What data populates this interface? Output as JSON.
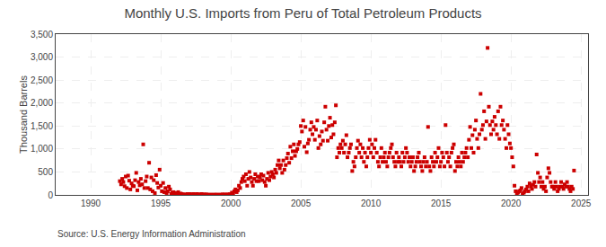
{
  "chart_data": {
    "type": "scatter",
    "title": "Monthly U.S. Imports from Peru of Total Petroleum Products",
    "ylabel": "Thousand Barrels",
    "annotation": "Source: U.S. Energy Information Administration",
    "color": "#cc0000",
    "marker": "square",
    "grid": true,
    "xlim": [
      1987.5,
      2025.5
    ],
    "xticks": [
      1990,
      1995,
      2000,
      2005,
      2010,
      2015,
      2020,
      2025
    ],
    "ylim": [
      0,
      3500
    ],
    "yticks": [
      0,
      500,
      {
        "value": 1000,
        "label": "1,000"
      },
      {
        "value": 1500,
        "label": "1,500"
      },
      {
        "value": 2000,
        "label": "2,000"
      },
      {
        "value": 2500,
        "label": "2,500"
      },
      {
        "value": 3000,
        "label": "3,000"
      },
      {
        "value": 3500,
        "label": "3,500"
      }
    ],
    "x": [
      1992.08,
      1992.17,
      1992.25,
      1992.33,
      1992.42,
      1992.5,
      1992.58,
      1992.67,
      1992.75,
      1992.83,
      1992.92,
      1993.0,
      1993.08,
      1993.17,
      1993.25,
      1993.33,
      1993.42,
      1993.5,
      1993.58,
      1993.67,
      1993.75,
      1993.83,
      1993.92,
      1994.0,
      1994.08,
      1994.17,
      1994.25,
      1994.33,
      1994.42,
      1994.5,
      1994.58,
      1994.67,
      1994.75,
      1994.83,
      1994.92,
      1995.0,
      1995.08,
      1995.17,
      1995.25,
      1995.33,
      1995.42,
      1995.5,
      1995.58,
      1995.67,
      1995.75,
      1995.83,
      1995.92,
      1996.0,
      1996.08,
      1996.17,
      1996.25,
      1996.33,
      1996.42,
      1996.5,
      1996.58,
      1996.67,
      1996.75,
      1996.83,
      1996.92,
      1997.0,
      1997.08,
      1997.17,
      1997.25,
      1997.33,
      1997.42,
      1997.5,
      1997.58,
      1997.67,
      1997.75,
      1997.83,
      1997.92,
      1998.0,
      1998.08,
      1998.17,
      1998.25,
      1998.33,
      1998.42,
      1998.5,
      1998.58,
      1998.67,
      1998.75,
      1998.83,
      1998.92,
      1999.0,
      1999.08,
      1999.17,
      1999.25,
      1999.33,
      1999.42,
      1999.5,
      1999.58,
      1999.67,
      1999.75,
      1999.83,
      1999.92,
      2000.0,
      2000.08,
      2000.17,
      2000.25,
      2000.33,
      2000.42,
      2000.5,
      2000.58,
      2000.67,
      2000.75,
      2000.83,
      2000.92,
      2001.0,
      2001.08,
      2001.17,
      2001.25,
      2001.33,
      2001.42,
      2001.5,
      2001.58,
      2001.67,
      2001.75,
      2001.83,
      2001.92,
      2002.0,
      2002.08,
      2002.17,
      2002.25,
      2002.33,
      2002.42,
      2002.5,
      2002.58,
      2002.67,
      2002.75,
      2002.83,
      2002.92,
      2003.0,
      2003.08,
      2003.17,
      2003.25,
      2003.33,
      2003.42,
      2003.5,
      2003.58,
      2003.67,
      2003.75,
      2003.83,
      2003.92,
      2004.0,
      2004.08,
      2004.17,
      2004.25,
      2004.33,
      2004.42,
      2004.5,
      2004.58,
      2004.67,
      2004.75,
      2004.83,
      2004.92,
      2005.0,
      2005.08,
      2005.17,
      2005.25,
      2005.33,
      2005.42,
      2005.5,
      2005.58,
      2005.67,
      2005.75,
      2005.83,
      2005.92,
      2006.0,
      2006.08,
      2006.17,
      2006.25,
      2006.33,
      2006.42,
      2006.5,
      2006.58,
      2006.67,
      2006.75,
      2006.83,
      2006.92,
      2007.0,
      2007.08,
      2007.17,
      2007.25,
      2007.33,
      2007.42,
      2007.5,
      2007.58,
      2007.67,
      2007.75,
      2007.83,
      2007.92,
      2008.0,
      2008.08,
      2008.17,
      2008.25,
      2008.33,
      2008.42,
      2008.5,
      2008.58,
      2008.67,
      2008.75,
      2008.83,
      2008.92,
      2009.0,
      2009.08,
      2009.17,
      2009.25,
      2009.33,
      2009.42,
      2009.5,
      2009.58,
      2009.67,
      2009.75,
      2009.83,
      2009.92,
      2010.0,
      2010.08,
      2010.17,
      2010.25,
      2010.33,
      2010.42,
      2010.5,
      2010.58,
      2010.67,
      2010.75,
      2010.83,
      2010.92,
      2011.0,
      2011.08,
      2011.17,
      2011.25,
      2011.33,
      2011.42,
      2011.5,
      2011.58,
      2011.67,
      2011.75,
      2011.83,
      2011.92,
      2012.0,
      2012.08,
      2012.17,
      2012.25,
      2012.33,
      2012.42,
      2012.5,
      2012.58,
      2012.67,
      2012.75,
      2012.83,
      2012.92,
      2013.0,
      2013.08,
      2013.17,
      2013.25,
      2013.33,
      2013.42,
      2013.5,
      2013.58,
      2013.67,
      2013.75,
      2013.83,
      2013.92,
      2014.0,
      2014.08,
      2014.17,
      2014.25,
      2014.33,
      2014.42,
      2014.5,
      2014.58,
      2014.67,
      2014.75,
      2014.83,
      2014.92,
      2015.0,
      2015.08,
      2015.17,
      2015.25,
      2015.33,
      2015.42,
      2015.5,
      2015.58,
      2015.67,
      2015.75,
      2015.83,
      2015.92,
      2016.0,
      2016.08,
      2016.17,
      2016.25,
      2016.33,
      2016.42,
      2016.5,
      2016.58,
      2016.67,
      2016.75,
      2016.83,
      2016.92,
      2017.0,
      2017.08,
      2017.17,
      2017.25,
      2017.33,
      2017.42,
      2017.5,
      2017.58,
      2017.67,
      2017.75,
      2017.83,
      2017.92,
      2018.0,
      2018.08,
      2018.17,
      2018.25,
      2018.33,
      2018.42,
      2018.5,
      2018.58,
      2018.67,
      2018.75,
      2018.83,
      2018.92,
      2019.0,
      2019.08,
      2019.17,
      2019.25,
      2019.33,
      2019.42,
      2019.5,
      2019.58,
      2019.67,
      2019.75,
      2019.83,
      2019.92,
      2020.0,
      2020.08,
      2020.17,
      2020.25,
      2020.33,
      2020.42,
      2020.5,
      2020.58,
      2020.67,
      2020.75,
      2020.83,
      2020.92,
      2021.0,
      2021.08,
      2021.17,
      2021.25,
      2021.33,
      2021.42,
      2021.5,
      2021.58,
      2021.67,
      2021.75,
      2021.83,
      2021.92,
      2022.0,
      2022.08,
      2022.17,
      2022.25,
      2022.33,
      2022.42,
      2022.5,
      2022.58,
      2022.67,
      2022.75,
      2022.83,
      2022.92,
      2023.0,
      2023.08,
      2023.17,
      2023.25,
      2023.33,
      2023.42,
      2023.5,
      2023.58,
      2023.67,
      2023.75,
      2023.83,
      2023.92,
      2024.0,
      2024.08,
      2024.17,
      2024.25,
      2024.33,
      2024.42,
      2024.5
    ],
    "values": [
      300,
      230,
      350,
      280,
      190,
      400,
      150,
      420,
      310,
      120,
      250,
      200,
      190,
      320,
      480,
      100,
      280,
      210,
      350,
      230,
      1100,
      150,
      300,
      400,
      150,
      700,
      120,
      380,
      80,
      320,
      40,
      430,
      260,
      160,
      550,
      200,
      80,
      260,
      60,
      150,
      40,
      80,
      180,
      120,
      20,
      40,
      60,
      10,
      40,
      20,
      60,
      10,
      30,
      20,
      10,
      5,
      10,
      5,
      20,
      10,
      20,
      5,
      10,
      20,
      5,
      10,
      20,
      10,
      5,
      10,
      20,
      5,
      10,
      5,
      10,
      5,
      3,
      2,
      5,
      3,
      2,
      5,
      3,
      5,
      3,
      2,
      5,
      3,
      10,
      5,
      8,
      3,
      10,
      5,
      15,
      10,
      50,
      30,
      80,
      120,
      60,
      100,
      200,
      150,
      280,
      350,
      400,
      300,
      450,
      200,
      350,
      500,
      380,
      280,
      200,
      350,
      450,
      300,
      400,
      300,
      380,
      450,
      320,
      420,
      280,
      200,
      350,
      480,
      320,
      400,
      500,
      450,
      380,
      550,
      480,
      650,
      750,
      580,
      650,
      480,
      750,
      550,
      650,
      800,
      900,
      700,
      1050,
      800,
      950,
      1100,
      850,
      950,
      1000,
      1100,
      1150,
      1500,
      1380,
      1620,
      1050,
      1480,
      930,
      1120,
      1200,
      1420,
      1580,
      1320,
      1480,
      1200,
      1420,
      1620,
      1020,
      1280,
      1100,
      1380,
      1180,
      1580,
      1920,
      1420,
      1180,
      1500,
      1680,
      1250,
      1520,
      1320,
      1580,
      1950,
      820,
      1020,
      920,
      1100,
      1020,
      1180,
      920,
      1100,
      1300,
      820,
      920,
      1020,
      1100,
      520,
      720,
      620,
      820,
      1020,
      1180,
      920,
      1100,
      820,
      1020,
      720,
      920,
      620,
      820,
      1020,
      1200,
      920,
      1100,
      820,
      1020,
      1200,
      920,
      720,
      620,
      820,
      1020,
      720,
      820,
      920,
      720,
      620,
      820,
      920,
      1020,
      1100,
      820,
      720,
      620,
      920,
      720,
      820,
      720,
      620,
      920,
      720,
      820,
      1020,
      920,
      720,
      820,
      620,
      720,
      820,
      520,
      620,
      720,
      820,
      920,
      720,
      620,
      520,
      720,
      820,
      620,
      720,
      1480,
      620,
      520,
      820,
      720,
      620,
      920,
      720,
      820,
      1020,
      620,
      720,
      920,
      820,
      620,
      1520,
      920,
      720,
      820,
      620,
      920,
      1020,
      1100,
      520,
      720,
      620,
      820,
      720,
      620,
      920,
      720,
      820,
      920,
      1020,
      820,
      1200,
      1480,
      1020,
      1300,
      920,
      1420,
      1620,
      1220,
      1020,
      1320,
      2200,
      1420,
      1520,
      1820,
      1220,
      1600,
      3200,
      1920,
      1520,
      1320,
      1600,
      1420,
      1700,
      1520,
      1320,
      1820,
      1220,
      1920,
      1520,
      1620,
      1420,
      1220,
      1020,
      1520,
      1320,
      1120,
      1020,
      820,
      620,
      200,
      80,
      30,
      50,
      80,
      100,
      150,
      20,
      50,
      80,
      120,
      180,
      80,
      250,
      180,
      130,
      220,
      280,
      180,
      880,
      480,
      280,
      380,
      180,
      280,
      130,
      180,
      80,
      380,
      580,
      480,
      280,
      180,
      180,
      130,
      280,
      180,
      80,
      130,
      180,
      280,
      180,
      130,
      230,
      180,
      280,
      180,
      130,
      80,
      180,
      130,
      530
    ]
  }
}
